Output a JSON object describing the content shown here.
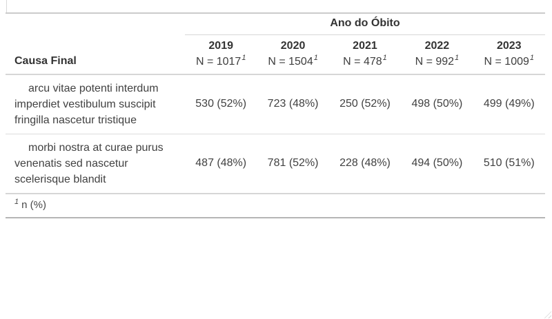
{
  "table": {
    "spanner_label": "Ano do Óbito",
    "stub_header": "Causa Final",
    "columns": [
      {
        "year": "2019",
        "n_label": "N = 1017",
        "footnote_mark": "1"
      },
      {
        "year": "2020",
        "n_label": "N = 1504",
        "footnote_mark": "1"
      },
      {
        "year": "2021",
        "n_label": "N = 478",
        "footnote_mark": "1"
      },
      {
        "year": "2022",
        "n_label": "N = 992",
        "footnote_mark": "1"
      },
      {
        "year": "2023",
        "n_label": "N = 1009",
        "footnote_mark": "1"
      }
    ],
    "rows": [
      {
        "label": "arcu vitae potenti interdum imperdiet vestibulum suscipit fringilla nascetur tristique",
        "values": [
          "530 (52%)",
          "723 (48%)",
          "250 (52%)",
          "498 (50%)",
          "499 (49%)"
        ]
      },
      {
        "label": "morbi nostra at curae purus venenatis sed nascetur scelerisque blandit",
        "values": [
          "487 (48%)",
          "781 (52%)",
          "228 (48%)",
          "494 (50%)",
          "510 (51%)"
        ]
      }
    ],
    "footnote": {
      "mark": "1",
      "text": "n (%)"
    }
  },
  "colors": {
    "background": "#ffffff",
    "header_text": "#333333",
    "body_text": "#414141",
    "border_light": "#dcdcdc",
    "border_medium": "#d6d6d6",
    "border_table_top": "#cbcbcb",
    "border_table_bottom": "#b5b5b5",
    "resize_grip": "#d7d7d7"
  }
}
